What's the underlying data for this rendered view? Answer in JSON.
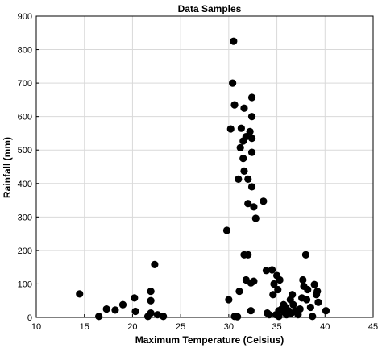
{
  "chart_data": {
    "type": "scatter",
    "title": "Data Samples",
    "xlabel": "Maximum Temperature (Celsius)",
    "ylabel": "Rainfall (mm)",
    "xlim": [
      10,
      45
    ],
    "ylim": [
      0,
      900
    ],
    "xticks": [
      10,
      15,
      20,
      25,
      30,
      35,
      40,
      45
    ],
    "yticks": [
      0,
      100,
      200,
      300,
      400,
      500,
      600,
      700,
      800,
      900
    ],
    "x_tick_labels": [
      "10",
      "15",
      "20",
      "25",
      "30",
      "35",
      "40",
      "45"
    ],
    "y_tick_labels": [
      "0",
      "100",
      "200",
      "300",
      "400",
      "500",
      "600",
      "700",
      "800",
      "900"
    ],
    "grid": true,
    "marker_color": "#000000",
    "grid_color": "#d9d9d9",
    "points": [
      {
        "x": 14.5,
        "y": 70
      },
      {
        "x": 16.5,
        "y": 3
      },
      {
        "x": 17.3,
        "y": 25
      },
      {
        "x": 18.2,
        "y": 22
      },
      {
        "x": 19.0,
        "y": 38
      },
      {
        "x": 20.2,
        "y": 58
      },
      {
        "x": 20.3,
        "y": 18
      },
      {
        "x": 21.6,
        "y": 3
      },
      {
        "x": 21.9,
        "y": 13
      },
      {
        "x": 21.9,
        "y": 50
      },
      {
        "x": 21.9,
        "y": 78
      },
      {
        "x": 22.3,
        "y": 158
      },
      {
        "x": 22.6,
        "y": 8
      },
      {
        "x": 23.2,
        "y": 3
      },
      {
        "x": 29.8,
        "y": 260
      },
      {
        "x": 30.0,
        "y": 53
      },
      {
        "x": 30.2,
        "y": 563
      },
      {
        "x": 30.4,
        "y": 700
      },
      {
        "x": 30.5,
        "y": 825
      },
      {
        "x": 30.6,
        "y": 635
      },
      {
        "x": 30.6,
        "y": 3
      },
      {
        "x": 30.9,
        "y": 2
      },
      {
        "x": 31.0,
        "y": 413
      },
      {
        "x": 31.1,
        "y": 78
      },
      {
        "x": 31.2,
        "y": 507
      },
      {
        "x": 31.3,
        "y": 565
      },
      {
        "x": 31.5,
        "y": 527
      },
      {
        "x": 31.5,
        "y": 475
      },
      {
        "x": 31.6,
        "y": 437
      },
      {
        "x": 31.6,
        "y": 187
      },
      {
        "x": 31.6,
        "y": 625
      },
      {
        "x": 31.8,
        "y": 540
      },
      {
        "x": 31.8,
        "y": 112
      },
      {
        "x": 32.0,
        "y": 187
      },
      {
        "x": 32.0,
        "y": 413
      },
      {
        "x": 32.0,
        "y": 340
      },
      {
        "x": 32.2,
        "y": 555
      },
      {
        "x": 32.3,
        "y": 103
      },
      {
        "x": 32.3,
        "y": 20
      },
      {
        "x": 32.4,
        "y": 657
      },
      {
        "x": 32.4,
        "y": 535
      },
      {
        "x": 32.4,
        "y": 493
      },
      {
        "x": 32.4,
        "y": 390
      },
      {
        "x": 32.4,
        "y": 600
      },
      {
        "x": 32.6,
        "y": 330
      },
      {
        "x": 32.6,
        "y": 108
      },
      {
        "x": 32.8,
        "y": 296
      },
      {
        "x": 33.6,
        "y": 347
      },
      {
        "x": 33.9,
        "y": 140
      },
      {
        "x": 34.0,
        "y": 13
      },
      {
        "x": 34.2,
        "y": 8
      },
      {
        "x": 34.5,
        "y": 142
      },
      {
        "x": 34.6,
        "y": 68
      },
      {
        "x": 34.7,
        "y": 100
      },
      {
        "x": 34.9,
        "y": 8
      },
      {
        "x": 35.0,
        "y": 125
      },
      {
        "x": 35.1,
        "y": 83
      },
      {
        "x": 35.2,
        "y": 20
      },
      {
        "x": 35.2,
        "y": 3
      },
      {
        "x": 35.3,
        "y": 112
      },
      {
        "x": 35.5,
        "y": 25
      },
      {
        "x": 35.7,
        "y": 38
      },
      {
        "x": 35.8,
        "y": 15
      },
      {
        "x": 35.9,
        "y": 30
      },
      {
        "x": 36.0,
        "y": 8
      },
      {
        "x": 36.2,
        "y": 20
      },
      {
        "x": 36.4,
        "y": 53
      },
      {
        "x": 36.5,
        "y": 13
      },
      {
        "x": 36.6,
        "y": 68
      },
      {
        "x": 36.7,
        "y": 38
      },
      {
        "x": 37.0,
        "y": 20
      },
      {
        "x": 37.2,
        "y": 8
      },
      {
        "x": 37.4,
        "y": 25
      },
      {
        "x": 37.6,
        "y": 58
      },
      {
        "x": 37.7,
        "y": 112
      },
      {
        "x": 37.8,
        "y": 93
      },
      {
        "x": 38.0,
        "y": 187
      },
      {
        "x": 38.1,
        "y": 53
      },
      {
        "x": 38.2,
        "y": 83
      },
      {
        "x": 38.5,
        "y": 30
      },
      {
        "x": 38.7,
        "y": 3
      },
      {
        "x": 38.9,
        "y": 98
      },
      {
        "x": 39.1,
        "y": 68
      },
      {
        "x": 39.2,
        "y": 78
      },
      {
        "x": 39.3,
        "y": 45
      },
      {
        "x": 40.1,
        "y": 20
      }
    ]
  }
}
